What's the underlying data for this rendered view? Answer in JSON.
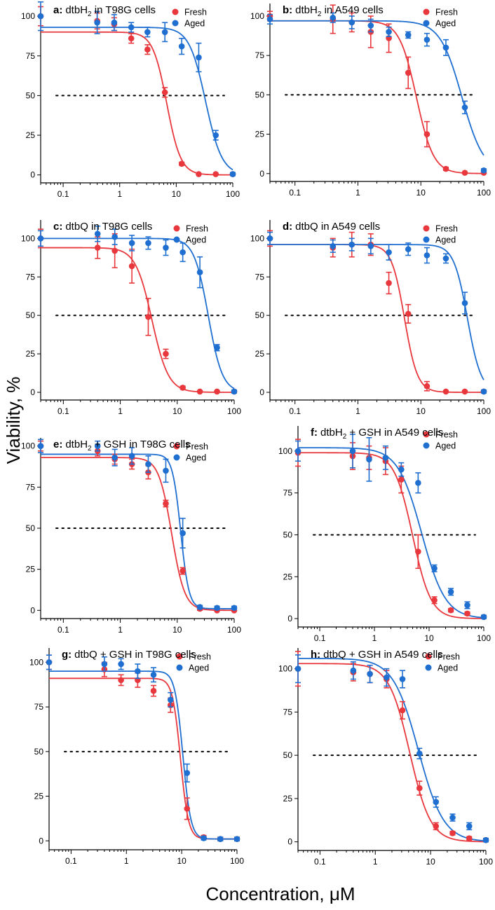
{
  "figure": {
    "ylabel": "Viability, %",
    "xlabel": "Concentration, μM"
  },
  "chart_data": [
    {
      "type": "scatter",
      "title_bold": "a:",
      "title_pre": "dtbH",
      "title_sub": "2",
      "title_post": " in T98G cells",
      "xscale": "log",
      "xlim": [
        0.04,
        100
      ],
      "ylim": [
        -5,
        108
      ],
      "xticks": [
        0.1,
        1,
        10,
        100
      ],
      "xtick_labels": [
        "0.1",
        "1",
        "10",
        "100"
      ],
      "yticks": [
        0,
        25,
        50,
        75,
        100
      ],
      "ytick_labels": [
        "0",
        "25",
        "50",
        "75",
        "100"
      ],
      "reference_line": 50,
      "series": [
        {
          "name": "Fresh",
          "color": "#e8383d",
          "x": [
            0.04,
            0.4,
            0.8,
            1.6,
            3.1,
            6.3,
            12.5,
            25,
            50,
            100
          ],
          "y": [
            100,
            97,
            95,
            86,
            79,
            52,
            7,
            0.5,
            0.5,
            0.5
          ],
          "err": [
            6,
            5,
            4,
            3,
            3,
            3,
            1,
            0.5,
            0.5,
            0.5
          ],
          "fit": {
            "top": 90,
            "bottom": 0,
            "ic50": 6.8,
            "hill": 3.5
          }
        },
        {
          "name": "Aged",
          "color": "#1f6fd1",
          "x": [
            0.04,
            0.4,
            0.8,
            1.6,
            3.1,
            6.3,
            12.5,
            25,
            50,
            100
          ],
          "y": [
            100,
            96,
            96,
            93,
            90,
            90,
            81,
            74,
            25,
            0.5
          ],
          "err": [
            9,
            7,
            5,
            3,
            3,
            6,
            5,
            9,
            3,
            1
          ],
          "fit": {
            "top": 93,
            "bottom": 0,
            "ic50": 33,
            "hill": 3
          }
        }
      ]
    },
    {
      "type": "scatter",
      "title_bold": "b:",
      "title_pre": "dtbH",
      "title_sub": "2",
      "title_post": " in A549 cells",
      "xscale": "log",
      "xlim": [
        0.04,
        100
      ],
      "ylim": [
        -5,
        108
      ],
      "xticks": [
        0.1,
        1,
        10,
        100
      ],
      "xtick_labels": [
        "0.1",
        "1",
        "10",
        "100"
      ],
      "yticks": [
        0,
        25,
        50,
        75,
        100
      ],
      "ytick_labels": [
        "0",
        "25",
        "50",
        "75",
        "100"
      ],
      "reference_line": 50,
      "series": [
        {
          "name": "Fresh",
          "color": "#e8383d",
          "x": [
            0.04,
            0.4,
            0.8,
            1.6,
            3.1,
            6.3,
            12.5,
            25,
            50,
            100
          ],
          "y": [
            100,
            98,
            96,
            90,
            86,
            64,
            25,
            3,
            0.5,
            0.5
          ],
          "err": [
            3,
            9,
            6,
            10,
            9,
            10,
            8,
            1,
            0.5,
            0.5
          ],
          "fit": {
            "top": 97,
            "bottom": 0,
            "ic50": 8.5,
            "hill": 3.2
          }
        },
        {
          "name": "Aged",
          "color": "#1f6fd1",
          "x": [
            0.04,
            0.4,
            0.8,
            1.6,
            3.1,
            6.3,
            12.5,
            25,
            50,
            100
          ],
          "y": [
            98,
            99,
            96,
            94,
            90,
            88,
            85,
            80,
            42,
            2
          ],
          "err": [
            3,
            3,
            4,
            4,
            3,
            2,
            4,
            5,
            4,
            1
          ],
          "fit": {
            "top": 97,
            "bottom": 0,
            "ic50": 45,
            "hill": 2.5
          }
        }
      ]
    },
    {
      "type": "scatter",
      "title_bold": "c:",
      "title_pre": "dtbQ in T98G cells",
      "title_sub": "",
      "title_post": "",
      "xscale": "log",
      "xlim": [
        0.04,
        100
      ],
      "ylim": [
        -5,
        112
      ],
      "xticks": [
        0.1,
        1,
        10,
        100
      ],
      "xtick_labels": [
        "0.1",
        "1",
        "10",
        "100"
      ],
      "yticks": [
        0,
        25,
        50,
        75,
        100
      ],
      "ytick_labels": [
        "0",
        "25",
        "50",
        "75",
        "100"
      ],
      "reference_line": 50,
      "series": [
        {
          "name": "Fresh",
          "color": "#e8383d",
          "x": [
            0.04,
            0.4,
            0.8,
            1.6,
            3.1,
            6.3,
            12.5,
            25,
            50,
            100
          ],
          "y": [
            100,
            94,
            92,
            82,
            49,
            25,
            3,
            0.5,
            0.5,
            0.5
          ],
          "err": [
            6,
            7,
            11,
            11,
            12,
            3,
            1,
            0.5,
            0.5,
            0.5
          ],
          "fit": {
            "top": 94,
            "bottom": 0,
            "ic50": 3.6,
            "hill": 3
          }
        },
        {
          "name": "Aged",
          "color": "#1f6fd1",
          "x": [
            0.04,
            0.4,
            0.8,
            1.6,
            3.1,
            6.3,
            12.5,
            25,
            50,
            100
          ],
          "y": [
            100,
            103,
            101,
            97,
            97,
            94,
            91,
            78,
            29,
            0.5
          ],
          "err": [
            5,
            5,
            5,
            5,
            4,
            5,
            6,
            10,
            2,
            1
          ],
          "fit": {
            "top": 100,
            "bottom": 0,
            "ic50": 35,
            "hill": 3.5
          }
        }
      ]
    },
    {
      "type": "scatter",
      "title_bold": "d:",
      "title_pre": "dtbQ in A549 cells",
      "title_sub": "",
      "title_post": "",
      "xscale": "log",
      "xlim": [
        0.04,
        100
      ],
      "ylim": [
        -5,
        112
      ],
      "xticks": [
        0.1,
        1,
        10,
        100
      ],
      "xtick_labels": [
        "0.1",
        "1",
        "10",
        "100"
      ],
      "yticks": [
        0,
        25,
        50,
        75,
        100
      ],
      "ytick_labels": [
        "0",
        "25",
        "50",
        "75",
        "100"
      ],
      "reference_line": 50,
      "series": [
        {
          "name": "Fresh",
          "color": "#e8383d",
          "x": [
            0.04,
            0.4,
            0.8,
            1.6,
            3.1,
            6.3,
            12.5,
            25,
            50,
            100
          ],
          "y": [
            100,
            94,
            96,
            96,
            71,
            51,
            4,
            0.5,
            0.5,
            0.5
          ],
          "err": [
            5,
            6,
            8,
            7,
            7,
            6,
            3,
            0.5,
            0.5,
            0.5
          ],
          "fit": {
            "top": 96,
            "bottom": 0,
            "ic50": 5.5,
            "hill": 4.2
          }
        },
        {
          "name": "Aged",
          "color": "#1f6fd1",
          "x": [
            0.04,
            0.4,
            0.8,
            1.6,
            3.1,
            6.3,
            12.5,
            25,
            50,
            100
          ],
          "y": [
            100,
            95,
            96,
            95,
            91,
            93,
            89,
            87,
            58,
            0.5
          ],
          "err": [
            4,
            4,
            4,
            5,
            5,
            4,
            5,
            3,
            7,
            1
          ],
          "fit": {
            "top": 96,
            "bottom": 0,
            "ic50": 55,
            "hill": 4
          }
        }
      ]
    },
    {
      "type": "scatter",
      "title_bold": "e:",
      "title_pre": "dtbH",
      "title_sub": "2",
      "title_post": " + GSH in T98G cells",
      "xscale": "log",
      "xlim": [
        0.04,
        100
      ],
      "ylim": [
        -5,
        105
      ],
      "xticks": [
        0.1,
        1,
        10,
        100
      ],
      "xtick_labels": [
        "0.1",
        "1",
        "10",
        "100"
      ],
      "yticks": [
        0,
        25,
        50,
        75,
        100
      ],
      "ytick_labels": [
        "0",
        "25",
        "50",
        "75",
        "100"
      ],
      "reference_line": 50,
      "series": [
        {
          "name": "Fresh",
          "color": "#e8383d",
          "x": [
            0.04,
            0.4,
            0.8,
            1.6,
            3.1,
            6.3,
            12.5,
            25,
            50,
            100
          ],
          "y": [
            100,
            97,
            92,
            89,
            84,
            65,
            24,
            1,
            0,
            0
          ],
          "err": [
            3,
            3,
            3,
            3,
            4,
            2,
            2,
            1,
            0.5,
            0.5
          ],
          "fit": {
            "top": 93,
            "bottom": 0,
            "ic50": 8,
            "hill": 3.8
          }
        },
        {
          "name": "Aged",
          "color": "#1f6fd1",
          "x": [
            0.04,
            0.4,
            0.8,
            1.6,
            3.1,
            6.3,
            12.5,
            25,
            50,
            100
          ],
          "y": [
            100,
            100,
            93,
            94,
            89,
            85,
            47,
            2,
            1.5,
            1.5
          ],
          "err": [
            4,
            3,
            5,
            5,
            5,
            7,
            9,
            1,
            1,
            1
          ],
          "fit": {
            "top": 95,
            "bottom": 1,
            "ic50": 11.5,
            "hill": 6
          }
        }
      ]
    },
    {
      "type": "scatter",
      "title_bold": "f:",
      "title_pre": "dtbH",
      "title_sub": "2",
      "title_post": " + GSH in A549 cells",
      "xscale": "log",
      "xlim": [
        0.04,
        100
      ],
      "ylim": [
        -5,
        115
      ],
      "xticks": [
        0.1,
        1,
        10,
        100
      ],
      "xtick_labels": [
        "0.1",
        "1",
        "10",
        "100"
      ],
      "yticks": [
        0,
        25,
        50,
        75,
        100
      ],
      "ytick_labels": [
        "0",
        "25",
        "50",
        "75",
        "100"
      ],
      "reference_line": 50,
      "series": [
        {
          "name": "Fresh",
          "color": "#e8383d",
          "x": [
            0.04,
            0.4,
            0.8,
            1.6,
            3.1,
            6.3,
            12.5,
            25,
            50,
            100
          ],
          "y": [
            99,
            97,
            96,
            94,
            83,
            40,
            11,
            5,
            3,
            1
          ],
          "err": [
            8,
            8,
            7,
            8,
            8,
            10,
            2,
            1,
            1,
            1
          ],
          "fit": {
            "top": 99,
            "bottom": 0,
            "ic50": 5,
            "hill": 2.6
          }
        },
        {
          "name": "Aged",
          "color": "#1f6fd1",
          "x": [
            0.04,
            0.4,
            0.8,
            1.6,
            3.1,
            6.3,
            12.5,
            25,
            50,
            100
          ],
          "y": [
            100,
            100,
            95,
            96,
            89,
            81,
            30,
            16,
            8,
            1
          ],
          "err": [
            6,
            10,
            13,
            7,
            4,
            6,
            2,
            2,
            2,
            1
          ],
          "fit": {
            "top": 102,
            "bottom": 0,
            "ic50": 7.3,
            "hill": 2
          }
        }
      ]
    },
    {
      "type": "scatter",
      "title_bold": "g:",
      "title_pre": "dtbQ + GSH in T98G cells",
      "title_sub": "",
      "title_post": "",
      "xscale": "log",
      "xlim": [
        0.04,
        100
      ],
      "ylim": [
        -5,
        108
      ],
      "xticks": [
        0.1,
        1,
        10,
        100
      ],
      "xtick_labels": [
        "0.1",
        "1",
        "10",
        "100"
      ],
      "yticks": [
        0,
        25,
        50,
        75,
        100
      ],
      "ytick_labels": [
        "0",
        "25",
        "50",
        "75",
        "100"
      ],
      "reference_line": 50,
      "series": [
        {
          "name": "Fresh",
          "color": "#e8383d",
          "x": [
            0.04,
            0.4,
            0.8,
            1.6,
            3.1,
            6.3,
            12.5,
            25,
            50,
            100
          ],
          "y": [
            100,
            96,
            90,
            90,
            84,
            76,
            18,
            2,
            1,
            1
          ],
          "err": [
            4,
            4,
            3,
            4,
            3,
            4,
            6,
            1,
            1,
            1
          ],
          "fit": {
            "top": 91,
            "bottom": 1,
            "ic50": 9.5,
            "hill": 6
          }
        },
        {
          "name": "Aged",
          "color": "#1f6fd1",
          "x": [
            0.04,
            0.4,
            0.8,
            1.6,
            3.1,
            6.3,
            12.5,
            25,
            50,
            100
          ],
          "y": [
            100,
            99,
            99,
            95,
            93,
            79,
            38,
            1.5,
            1,
            1
          ],
          "err": [
            4,
            4,
            3,
            4,
            4,
            4,
            5,
            1,
            1,
            1
          ],
          "fit": {
            "top": 95,
            "bottom": 1,
            "ic50": 10.5,
            "hill": 6
          }
        }
      ]
    },
    {
      "type": "scatter",
      "title_bold": "h:",
      "title_pre": "dtbQ + GSH in A549 cells",
      "title_sub": "",
      "title_post": "",
      "xscale": "log",
      "xlim": [
        0.04,
        100
      ],
      "ylim": [
        -5,
        112
      ],
      "xticks": [
        0.1,
        1,
        10,
        100
      ],
      "xtick_labels": [
        "0.1",
        "1",
        "10",
        "100"
      ],
      "yticks": [
        0,
        25,
        50,
        75,
        100
      ],
      "ytick_labels": [
        "0",
        "25",
        "50",
        "75",
        "100"
      ],
      "reference_line": 50,
      "series": [
        {
          "name": "Fresh",
          "color": "#e8383d",
          "x": [
            0.04,
            0.4,
            0.8,
            1.6,
            3.1,
            6.3,
            12.5,
            25,
            50,
            100
          ],
          "y": [
            100,
            98,
            97,
            94,
            76,
            31,
            9,
            5,
            2,
            1
          ],
          "err": [
            10,
            5,
            5,
            5,
            5,
            4,
            2,
            1,
            1,
            1
          ],
          "fit": {
            "top": 103,
            "bottom": 0,
            "ic50": 4.2,
            "hill": 2.3
          }
        },
        {
          "name": "Aged",
          "color": "#1f6fd1",
          "x": [
            0.04,
            0.4,
            0.8,
            1.6,
            3.1,
            6.3,
            12.5,
            25,
            50,
            100
          ],
          "y": [
            100,
            99,
            97,
            95,
            94,
            51,
            23,
            14,
            9,
            1
          ],
          "err": [
            8,
            5,
            5,
            5,
            5,
            3,
            3,
            2,
            2,
            1
          ],
          "fit": {
            "top": 106,
            "bottom": 0,
            "ic50": 6,
            "hill": 1.9
          }
        }
      ]
    }
  ]
}
